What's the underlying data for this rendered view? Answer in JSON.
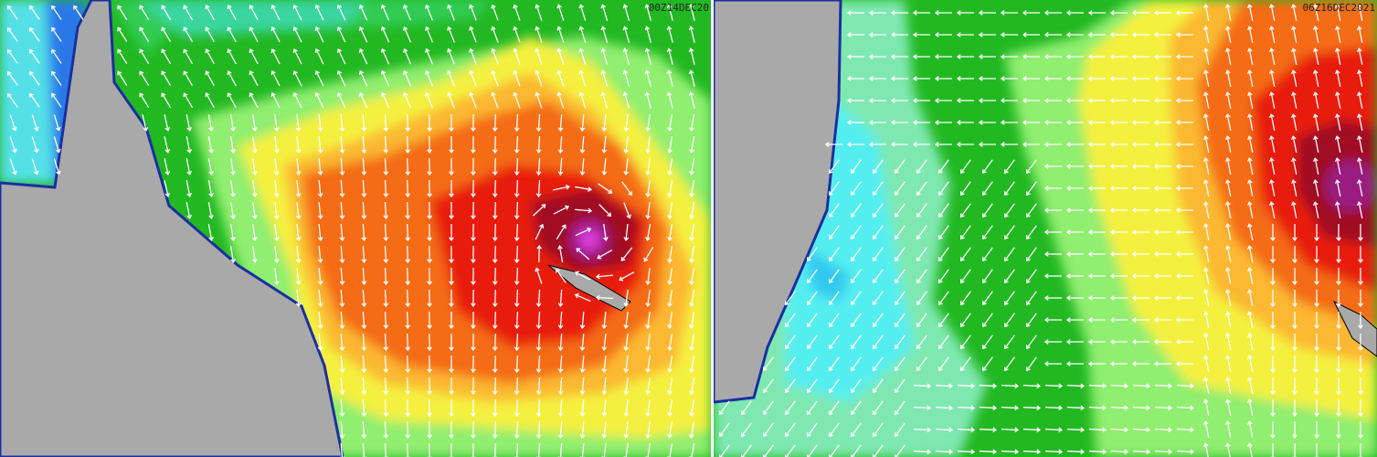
{
  "panels": [
    {
      "timestamp": "00Z14DEC20"
    },
    {
      "timestamp": "06Z16DEC2021"
    }
  ]
}
